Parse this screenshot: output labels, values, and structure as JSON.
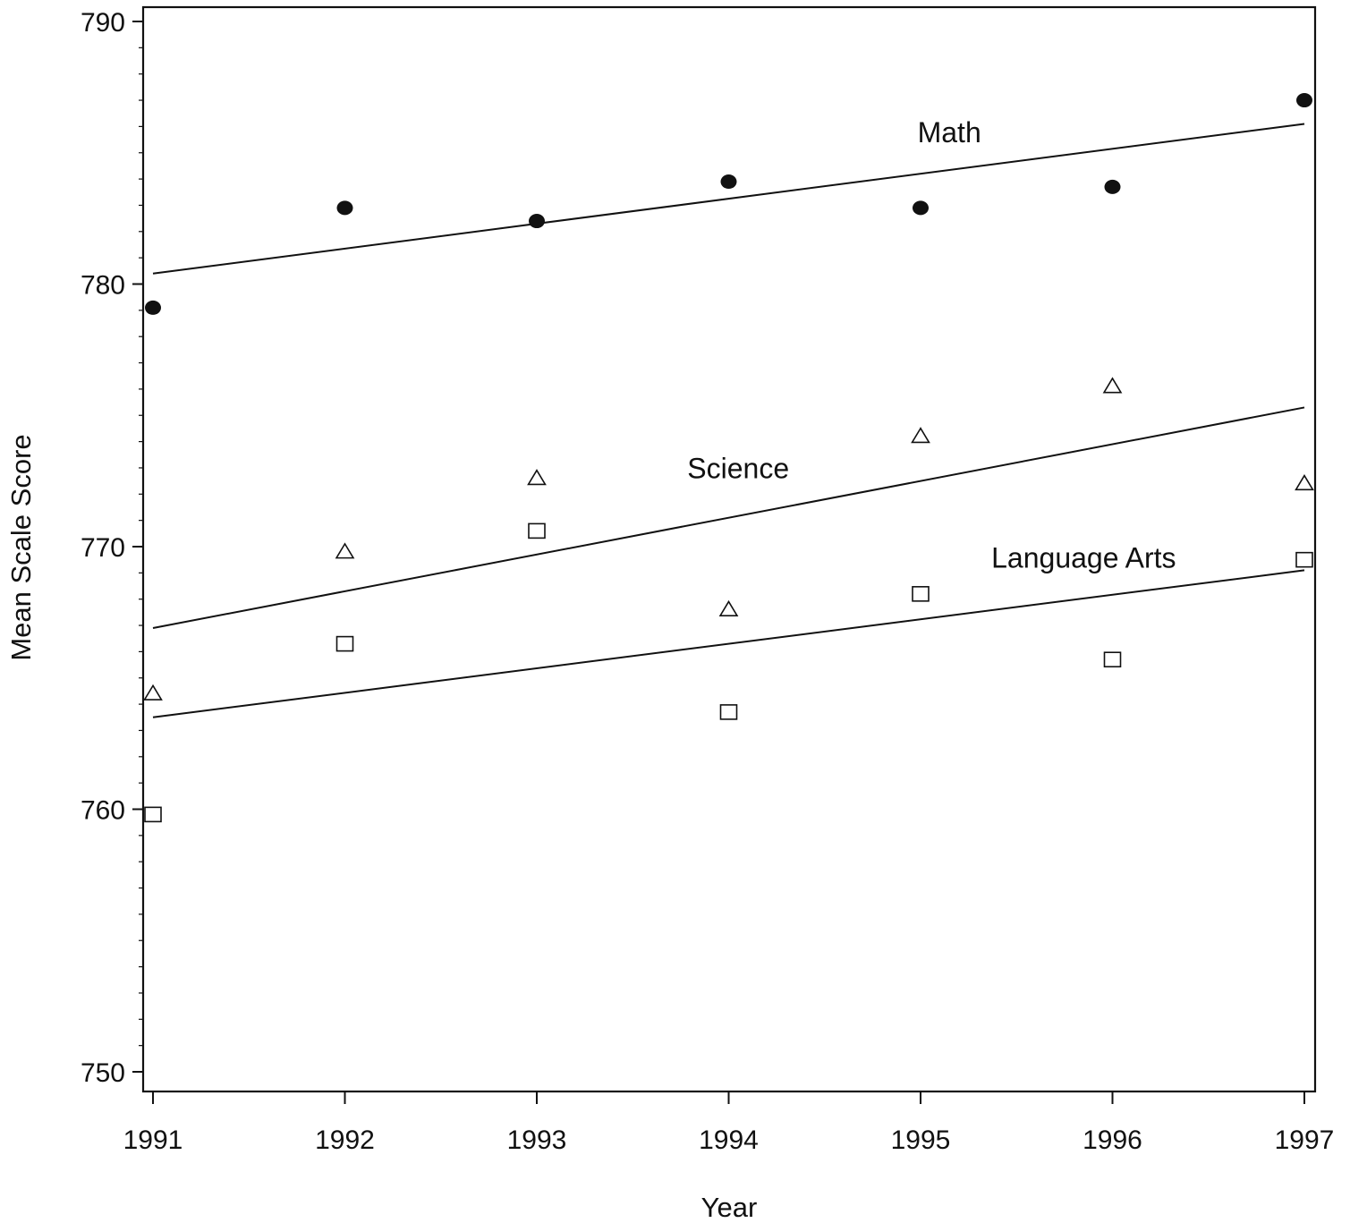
{
  "chart_data": {
    "type": "scatter",
    "xlabel": "Year",
    "ylabel": "Mean Scale Score",
    "x": [
      1991,
      1992,
      1993,
      1994,
      1995,
      1996,
      1997
    ],
    "xlim": [
      1991,
      1997
    ],
    "ylim": [
      750,
      790
    ],
    "x_ticks": [
      1991,
      1992,
      1993,
      1994,
      1995,
      1996,
      1997
    ],
    "y_ticks": [
      750,
      760,
      770,
      780,
      790
    ],
    "y_minor_step": 1,
    "grid": false,
    "legend": "none",
    "series": [
      {
        "name": "Math",
        "marker": "filled-circle",
        "values": [
          779.1,
          782.9,
          782.4,
          783.9,
          782.9,
          783.7,
          787.0
        ],
        "trend": [
          780.4,
          786.1
        ],
        "label_at": [
          1995.15,
          785.4
        ]
      },
      {
        "name": "Science",
        "marker": "open-triangle",
        "values": [
          764.4,
          769.8,
          772.6,
          767.6,
          774.2,
          776.1,
          772.4
        ],
        "trend": [
          766.9,
          775.3
        ],
        "label_at": [
          1994.05,
          772.6
        ]
      },
      {
        "name": "Language Arts",
        "marker": "open-square",
        "values": [
          759.8,
          766.3,
          770.6,
          763.7,
          768.2,
          765.7,
          769.5
        ],
        "trend": [
          763.5,
          769.1
        ],
        "label_at": [
          1995.85,
          769.2
        ]
      }
    ]
  },
  "colors": {
    "ink": "#111111",
    "background": "#ffffff"
  }
}
